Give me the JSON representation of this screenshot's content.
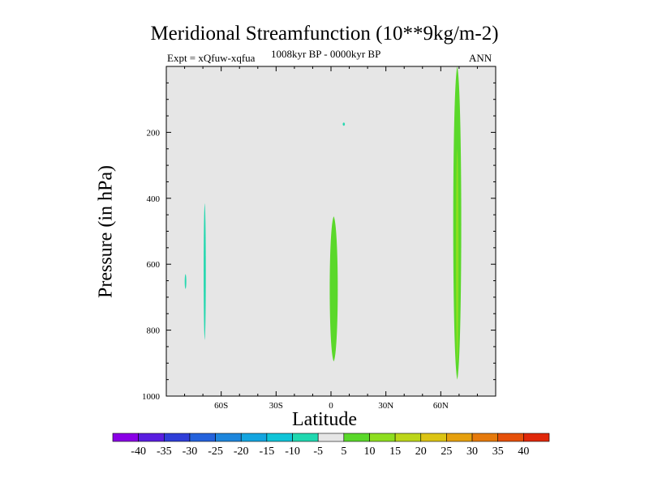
{
  "chart_data": {
    "type": "heatmap",
    "title": "Meridional Streamfunction (10**9kg/m-2)",
    "subtitle_left": "Expt = xQfuw-xqfua",
    "subtitle_center": "1008kyr BP - 0000kyr BP",
    "subtitle_right": "ANN",
    "xlabel": "Latitude",
    "ylabel": "Pressure (in hPa)",
    "xlim": [
      -90,
      90
    ],
    "ylim": [
      1000,
      0
    ],
    "x_ticks": [
      {
        "value": -60,
        "label": "60S"
      },
      {
        "value": -30,
        "label": "30S"
      },
      {
        "value": 0,
        "label": "0"
      },
      {
        "value": 30,
        "label": "30N"
      },
      {
        "value": 60,
        "label": "60N"
      }
    ],
    "y_ticks": [
      {
        "value": 200,
        "label": "200"
      },
      {
        "value": 400,
        "label": "400"
      },
      {
        "value": 600,
        "label": "600"
      },
      {
        "value": 800,
        "label": "800"
      },
      {
        "value": 1000,
        "label": "1000"
      }
    ],
    "background_color": "#e6e6e6",
    "colorbar": {
      "labels": [
        "-40",
        "-35",
        "-30",
        "-25",
        "-20",
        "-15",
        "-10",
        "-5",
        "5",
        "10",
        "15",
        "20",
        "25",
        "30",
        "35",
        "40"
      ],
      "colors": [
        "#8a00e6",
        "#5a1ee0",
        "#2f3ed8",
        "#2462dc",
        "#1e86dc",
        "#14a5e0",
        "#10c4d8",
        "#20d8b0",
        "#e6e6e6",
        "#5ad82a",
        "#8ede20",
        "#bcd61a",
        "#dcc414",
        "#e6a00e",
        "#e67a0c",
        "#e6500a",
        "#e0280a"
      ]
    },
    "regions": [
      {
        "lat_center": -69,
        "lat_halfwidth": 0.6,
        "p_top": 415,
        "p_bottom": 830,
        "color": "#28d8b0",
        "value_range": "-10 to -5"
      },
      {
        "lat_center": -79.5,
        "lat_halfwidth": 0.35,
        "p_top": 630,
        "p_bottom": 675,
        "color": "#28d8b0",
        "value_range": "-10 to -5"
      },
      {
        "lat_center": 7,
        "lat_halfwidth": 0.6,
        "p_top": 170,
        "p_bottom": 180,
        "color": "#28d8b0",
        "value_range": "-10 to -5"
      },
      {
        "lat_center": 1.5,
        "lat_halfwidth": 2.2,
        "p_top": 455,
        "p_bottom": 895,
        "color": "#5ad82a",
        "value_range": "5 to 10"
      },
      {
        "lat_center": 69,
        "lat_halfwidth": 2.2,
        "p_top": 0,
        "p_bottom": 950,
        "color": "#5ad82a",
        "value_range": "5 to 10"
      },
      {
        "lat_center": 69,
        "lat_halfwidth": 0.7,
        "p_top": 250,
        "p_bottom": 900,
        "color": "#8ede20",
        "value_range": "10 to 15"
      }
    ]
  }
}
